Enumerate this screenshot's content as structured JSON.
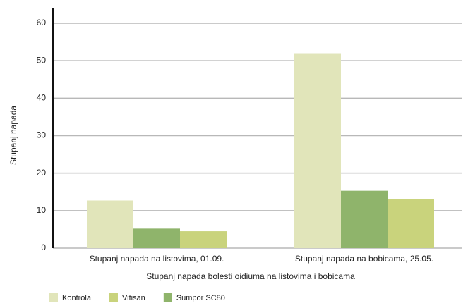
{
  "chart_data": {
    "type": "bar",
    "categories": [
      "Stupanj napada na listovima, 01.09.",
      "Stupanj napada na bobicama, 25.05."
    ],
    "series": [
      {
        "name": "Kontrola",
        "color": "#e1e5ba",
        "values": [
          12.7,
          52
        ]
      },
      {
        "name": "Vitisan",
        "color": "#c9d37c",
        "values": [
          4.5,
          13
        ]
      },
      {
        "name": "Sumpor SC80",
        "color": "#8fb46b",
        "values": [
          5.2,
          15.3
        ]
      }
    ],
    "x_label": "Stupanj napada bolesti oidiuma na listovima i bobicama",
    "y_label": "Stupanj napada",
    "ylim": [
      0,
      60
    ],
    "yticks": [
      0,
      10,
      20,
      30,
      40,
      50,
      60
    ],
    "grid": true,
    "legend": "bottom"
  }
}
